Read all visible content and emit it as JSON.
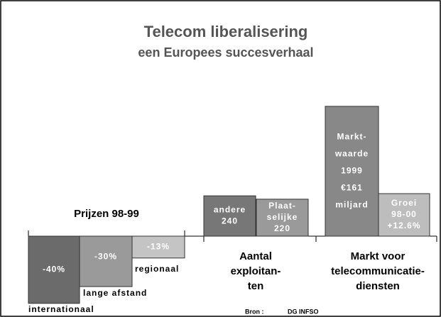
{
  "title": "Telecom liberalisering",
  "subtitle": "een Europees succesverhaal",
  "source": [
    "Bron :",
    "DG INFSO"
  ],
  "chart_data": [
    {
      "type": "bar",
      "title": [
        "Prijzen 98-99"
      ],
      "categories": [
        [
          "internationaal"
        ],
        [
          "lange afstand"
        ],
        [
          "regionaal"
        ]
      ],
      "values": [
        -40,
        -30,
        -13
      ],
      "value_labels": [
        [
          "-40%"
        ],
        [
          "-30%"
        ],
        [
          "-13%"
        ]
      ],
      "colors": [
        "#6b6b6b",
        "#9a9a9a",
        "#c4c4c4"
      ]
    },
    {
      "type": "bar",
      "title": [
        "Aantal",
        "exploitan-",
        "ten"
      ],
      "categories": [
        [
          "andere"
        ],
        [
          "Plaat-",
          "selijke"
        ]
      ],
      "values": [
        240,
        220
      ],
      "colors": [
        "#777777",
        "#9a9a9a"
      ]
    },
    {
      "type": "bar",
      "title": [
        "Markt voor",
        "telecommunicatie-",
        "diensten"
      ],
      "categories": [
        [
          "Markt-",
          "waarde",
          "1999"
        ],
        [
          "Groei",
          "98-00"
        ]
      ],
      "values": [
        161,
        12.6
      ],
      "value_labels": [
        [
          "€161",
          "miljard"
        ],
        [
          "+12.6%"
        ]
      ],
      "colors": [
        "#888888",
        "#bdbdbd"
      ]
    }
  ]
}
